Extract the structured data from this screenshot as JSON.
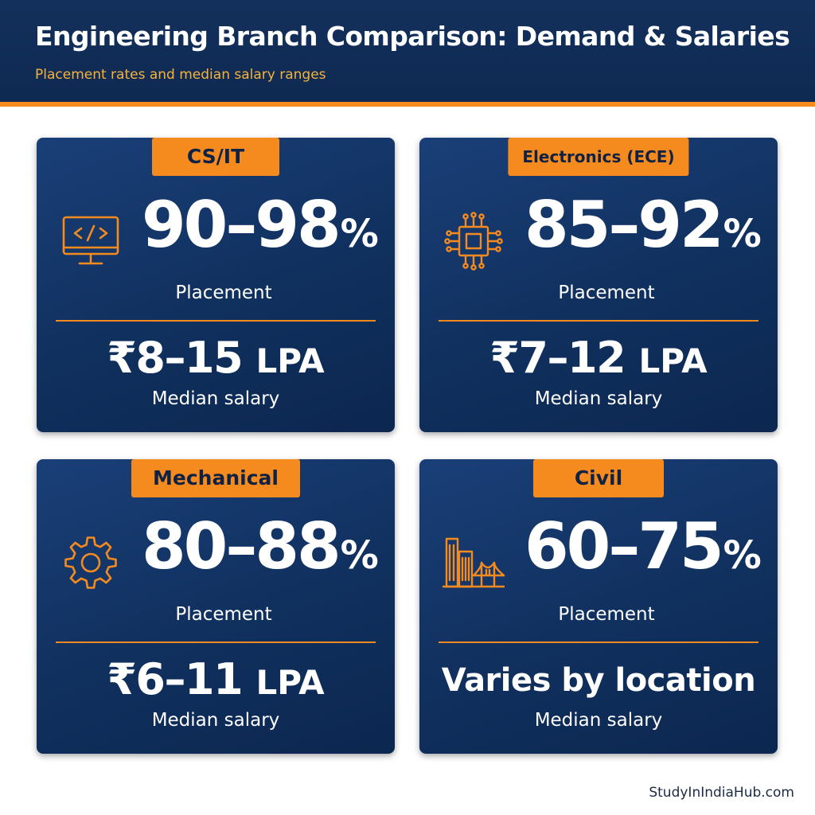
{
  "header": {
    "title": "Engineering Branch Comparison: Demand & Salaries",
    "subtitle": "Placement rates and median salary ranges"
  },
  "cards": [
    {
      "branch": "CS/IT",
      "icon": "computer-code-icon",
      "placement_range": "90–98",
      "percent_symbol": "%",
      "placement_label": "Placement",
      "salary_value": "₹8–15",
      "salary_unit": "LPA",
      "salary_label": "Median salary"
    },
    {
      "branch": "Electronics (ECE)",
      "icon": "microchip-icon",
      "placement_range": "85–92",
      "percent_symbol": "%",
      "placement_label": "Placement",
      "salary_value": "₹7–12",
      "salary_unit": "LPA",
      "salary_label": "Median salary"
    },
    {
      "branch": "Mechanical",
      "icon": "gear-icon",
      "placement_range": "80–88",
      "percent_symbol": "%",
      "placement_label": "Placement",
      "salary_value": "₹6–11",
      "salary_unit": "LPA",
      "salary_label": "Median salary"
    },
    {
      "branch": "Civil",
      "icon": "buildings-bridge-icon",
      "placement_range": "60–75",
      "percent_symbol": "%",
      "placement_label": "Placement",
      "salary_text": "Varies by location",
      "salary_label": "Median salary"
    }
  ],
  "footer": {
    "source": "StudyInIndiaHub.com"
  },
  "colors": {
    "navy": "#10305e",
    "orange": "#f58b1f",
    "subtitle_gold": "#f7b23d"
  }
}
